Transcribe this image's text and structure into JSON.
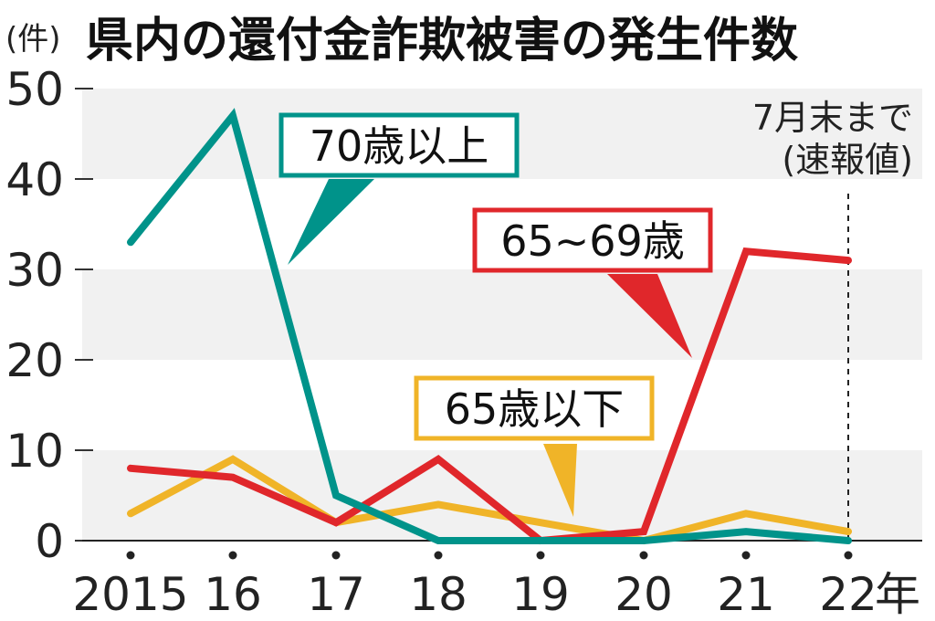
{
  "chart_data": {
    "type": "line",
    "title": "県内の還付金詐欺被害の発生件数",
    "unit_label": "(件)",
    "year_suffix": "年",
    "x": [
      "2015",
      "16",
      "17",
      "18",
      "19",
      "20",
      "21",
      "22"
    ],
    "ylim": [
      0,
      50
    ],
    "yticks": [
      0,
      10,
      20,
      30,
      40,
      50
    ],
    "grid": "alternating horizontal bands",
    "series": [
      {
        "name": "70歳以上",
        "color": "#00938a",
        "values": [
          33,
          47,
          5,
          0,
          0,
          0,
          1,
          0
        ]
      },
      {
        "name": "65~69歳",
        "color": "#e0272b",
        "values": [
          8,
          7,
          2,
          9,
          0,
          1,
          32,
          31
        ]
      },
      {
        "name": "65歳以下",
        "color": "#f0b428",
        "values": [
          3,
          9,
          2,
          4,
          2,
          0,
          3,
          1
        ]
      }
    ],
    "annotation": {
      "line1": "7月末まで",
      "line2": "(速報値)"
    }
  }
}
